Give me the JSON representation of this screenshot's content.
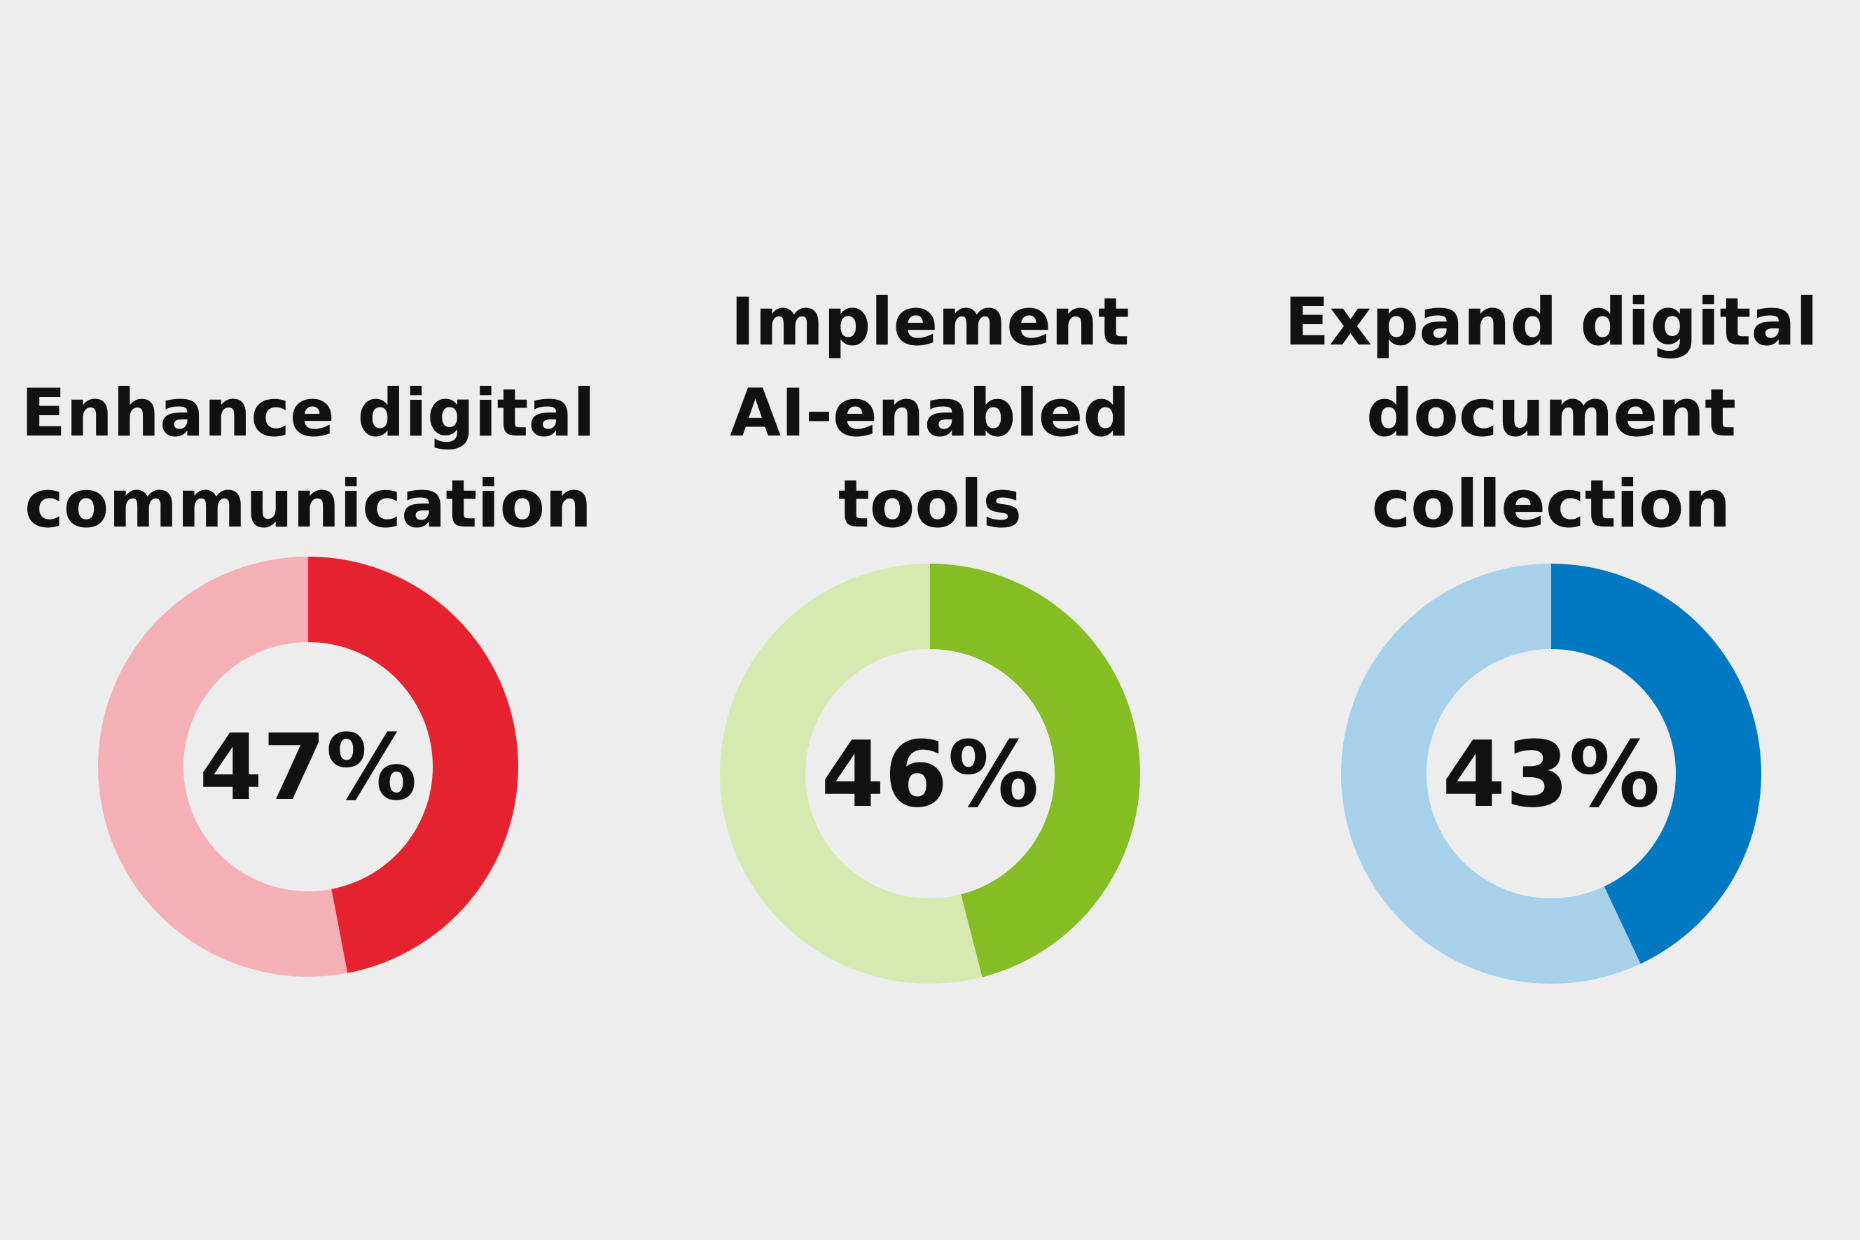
{
  "chart_data": [
    {
      "type": "pie",
      "title_lines": [
        "Enhance digital",
        "communication"
      ],
      "value": 47,
      "value_label": "47%",
      "colors": {
        "filled": "#e42230",
        "remainder": "#f5b0b5"
      }
    },
    {
      "type": "pie",
      "title_lines": [
        "Implement",
        "AI-enabled",
        "tools"
      ],
      "value": 46,
      "value_label": "46%",
      "colors": {
        "filled": "#86bc24",
        "remainder": "#d6e9b1"
      }
    },
    {
      "type": "pie",
      "title_lines": [
        "Expand digital",
        "document",
        "collection"
      ],
      "value": 43,
      "value_label": "43%",
      "colors": {
        "filled": "#0079c2",
        "remainder": "#a7d1eb"
      }
    }
  ],
  "background_color": "#ededed",
  "text_color": "#111111"
}
